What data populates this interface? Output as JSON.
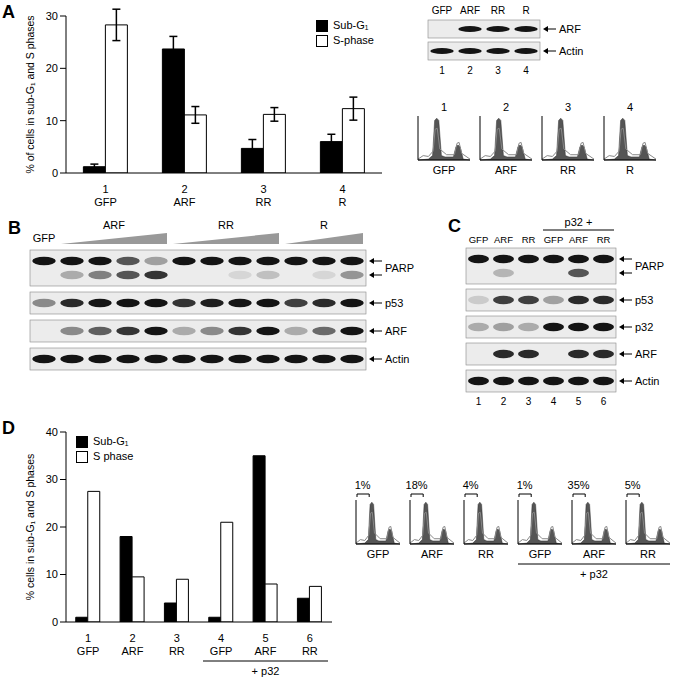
{
  "chart_data": [
    {
      "type": "bar",
      "panel_label": "A",
      "y_label": "% of cells in sub-G₁ and S phases",
      "categories": [
        "GFP",
        "ARF",
        "RR",
        "R"
      ],
      "category_numbers": [
        "1",
        "2",
        "3",
        "4"
      ],
      "ylim": [
        0,
        30
      ],
      "yticks": [
        0,
        10,
        20,
        30
      ],
      "legend": "upper right",
      "series": [
        {
          "name": "Sub-G₁",
          "color": "#000000",
          "values": [
            1.2,
            23.7,
            4.7,
            6.0
          ],
          "errors": [
            0.5,
            2.4,
            1.7,
            1.4
          ]
        },
        {
          "name": "S-phase",
          "color": "#ffffff",
          "values": [
            28.3,
            11.1,
            11.2,
            12.3
          ],
          "errors": [
            3.0,
            1.6,
            1.3,
            2.2
          ]
        }
      ]
    },
    {
      "type": "bar",
      "panel_label": "D",
      "y_label": "% cells in sub-G₁ and S phases",
      "categories": [
        "GFP",
        "ARF",
        "RR",
        "GFP",
        "ARF",
        "RR"
      ],
      "category_numbers": [
        "1",
        "2",
        "3",
        "4",
        "5",
        "6"
      ],
      "groups": [
        {
          "label": "+ p32",
          "from": 3,
          "to": 5
        }
      ],
      "ylim": [
        0,
        40
      ],
      "yticks": [
        0,
        10,
        20,
        30,
        40
      ],
      "legend": "upper left",
      "series": [
        {
          "name": "Sub-G₁",
          "color": "#000000",
          "values": [
            1,
            18,
            4,
            1,
            35,
            5
          ]
        },
        {
          "name": "S phase",
          "color": "#ffffff",
          "values": [
            27.5,
            9.5,
            9,
            21,
            8,
            7.5
          ]
        }
      ]
    }
  ],
  "blots": [
    {
      "lane_labels": [
        "GFP",
        "ARF",
        "RR",
        "R"
      ],
      "lane_numbers": [
        "1",
        "2",
        "3",
        "4"
      ],
      "rows": [
        {
          "label": "ARF",
          "bands": [
            [
              0,
              1,
              1,
              1
            ]
          ]
        },
        {
          "label": "Actin",
          "bands": [
            [
              1,
              1,
              1,
              1
            ]
          ]
        }
      ]
    },
    {
      "panel_label": "B",
      "lane_groups": [
        {
          "label": "GFP",
          "lanes": 1,
          "gradient": false
        },
        {
          "label": "ARF",
          "lanes": 4,
          "gradient": true
        },
        {
          "label": "RR",
          "lanes": 4,
          "gradient": true
        },
        {
          "label": "R",
          "lanes": 3,
          "gradient": true
        }
      ],
      "rows": [
        {
          "label": "PARP",
          "bands": [
            [
              1,
              1,
              1,
              0.7,
              0.35,
              1,
              1,
              1,
              1,
              1,
              1,
              1
            ],
            [
              0,
              0.3,
              0.5,
              0.7,
              0.85,
              0,
              0,
              0.1,
              0.2,
              0,
              0.1,
              0.4
            ]
          ]
        },
        {
          "label": "p53",
          "bands": [
            [
              0.45,
              0.9,
              1,
              1,
              1,
              0.85,
              0.95,
              1,
              1,
              0.8,
              0.9,
              1
            ]
          ]
        },
        {
          "label": "ARF",
          "bands": [
            [
              0,
              0.45,
              0.65,
              0.85,
              1,
              0.3,
              0.45,
              0.85,
              1,
              0.3,
              0.6,
              1
            ]
          ]
        },
        {
          "label": "Actin",
          "bands": [
            [
              1,
              1,
              1,
              1,
              1,
              1,
              1,
              1,
              1,
              1,
              1,
              1
            ]
          ]
        }
      ]
    },
    {
      "panel_label": "C",
      "header_groups": [
        {
          "label": "p32 +",
          "from": 3,
          "to": 5
        }
      ],
      "lane_labels": [
        "GFP",
        "ARF",
        "RR",
        "GFP",
        "ARF",
        "RR"
      ],
      "lane_numbers": [
        "1",
        "2",
        "3",
        "4",
        "5",
        "6"
      ],
      "rows": [
        {
          "label": "PARP",
          "bands": [
            [
              1,
              1,
              1,
              1,
              1,
              1
            ],
            [
              0,
              0.25,
              0,
              0,
              0.7,
              0
            ]
          ]
        },
        {
          "label": "p53",
          "bands": [
            [
              0.15,
              0.8,
              0.8,
              0.35,
              0.9,
              0.9
            ]
          ]
        },
        {
          "label": "p32",
          "bands": [
            [
              0.3,
              0.35,
              0.3,
              1,
              1,
              1
            ]
          ]
        },
        {
          "label": "ARF",
          "bands": [
            [
              0,
              0.9,
              0.9,
              0,
              0.9,
              0.9
            ]
          ]
        },
        {
          "label": "Actin",
          "bands": [
            [
              1,
              1,
              1,
              1,
              1,
              1
            ]
          ]
        }
      ]
    }
  ],
  "histograms": [
    {
      "top_labels": [
        "1",
        "2",
        "3",
        "4"
      ],
      "bottom_labels": [
        "GFP",
        "ARF",
        "RR",
        "R"
      ]
    },
    {
      "top_labels": [
        "1%",
        "18%",
        "4%",
        "1%",
        "35%",
        "5%"
      ],
      "bottom_labels": [
        "GFP",
        "ARF",
        "RR",
        "GFP",
        "ARF",
        "RR"
      ],
      "groups": [
        {
          "label": "+ p32",
          "from": 3,
          "to": 5
        }
      ]
    }
  ]
}
